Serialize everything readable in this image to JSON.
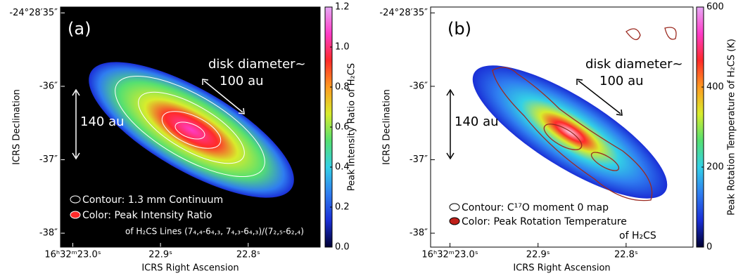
{
  "chart_data": [
    {
      "type": "image",
      "label": "(a)",
      "xlabel": "ICRS Right Ascension",
      "ylabel": "ICRS Declination",
      "xlim": [
        23.014,
        22.718
      ],
      "xticks": [
        {
          "value": 23.0,
          "label": "16ʰ32ᵐ23.0ˢ"
        },
        {
          "value": 22.9,
          "label": "22.9ˢ"
        },
        {
          "value": 22.8,
          "label": "22.8ˢ"
        }
      ],
      "ylim": [
        -38.19,
        -34.92
      ],
      "yticks": [
        {
          "value": -35,
          "label": "-24°28′35″"
        },
        {
          "value": -36,
          "label": "-36″"
        },
        {
          "value": -37,
          "label": "-37″"
        },
        {
          "value": -38,
          "label": "-38″"
        }
      ],
      "background": "#000000",
      "colorbar": {
        "label": "Peak Intensity Ratio of H₂CS",
        "lim": [
          0,
          1.2
        ],
        "ticks": [
          {
            "value": 0,
            "label": "0.0"
          },
          0.2,
          0.4,
          0.6,
          0.8,
          {
            "value": 1,
            "label": "1.0"
          },
          1.2
        ],
        "colormap": [
          "#000033",
          "#1a2fd6",
          "#2f7df0",
          "#33d0e6",
          "#55e070",
          "#d8ec2c",
          "#ff9a20",
          "#ff2a2a",
          "#ff3cc8",
          "#e6a8f4"
        ]
      },
      "annotations": [
        "disk diameter~",
        "100 au",
        "140 au",
        "Contour: 1.3 mm Continuum",
        "Color: Peak Intensity Ratio",
        "of H₂CS Lines (7₄,₄-6₄,₃, 7₄,₃-6₄,₃)/(7₂,₅-6₂,₄)"
      ]
    },
    {
      "type": "image",
      "label": "(b)",
      "xlabel": "ICRS Right Ascension",
      "ylabel": "ICRS Declination",
      "xlim": [
        23.022,
        22.724
      ],
      "xticks": [
        {
          "value": 23.0,
          "label": "16ʰ32ᵐ23.0ˢ"
        },
        {
          "value": 22.9,
          "label": "22.9ˢ"
        },
        {
          "value": 22.8,
          "label": "22.8ˢ"
        }
      ],
      "ylim": [
        -38.19,
        -34.92
      ],
      "yticks": [
        {
          "value": -35,
          "label": "-24°28′35″"
        },
        {
          "value": -36,
          "label": "-36″"
        },
        {
          "value": -37,
          "label": "-37″"
        },
        {
          "value": -38,
          "label": "-38″"
        }
      ],
      "background": "#ffffff",
      "colorbar": {
        "label": "Peak Rotation Temperature of H₂CS (K)",
        "lim": [
          0,
          600
        ],
        "ticks": [
          0,
          200,
          400,
          600
        ],
        "colormap": [
          "#000033",
          "#1a2fd6",
          "#2f7df0",
          "#33d0e6",
          "#55e070",
          "#d8ec2c",
          "#ff9a20",
          "#ff2a2a",
          "#ff3cc8",
          "#e6a8f4"
        ]
      },
      "annotations": [
        "disk diameter~",
        "100 au",
        "140 au",
        "Contour: C¹⁷O moment 0 map",
        "Color: Peak Rotation Temperature",
        "of H₂CS"
      ]
    }
  ]
}
